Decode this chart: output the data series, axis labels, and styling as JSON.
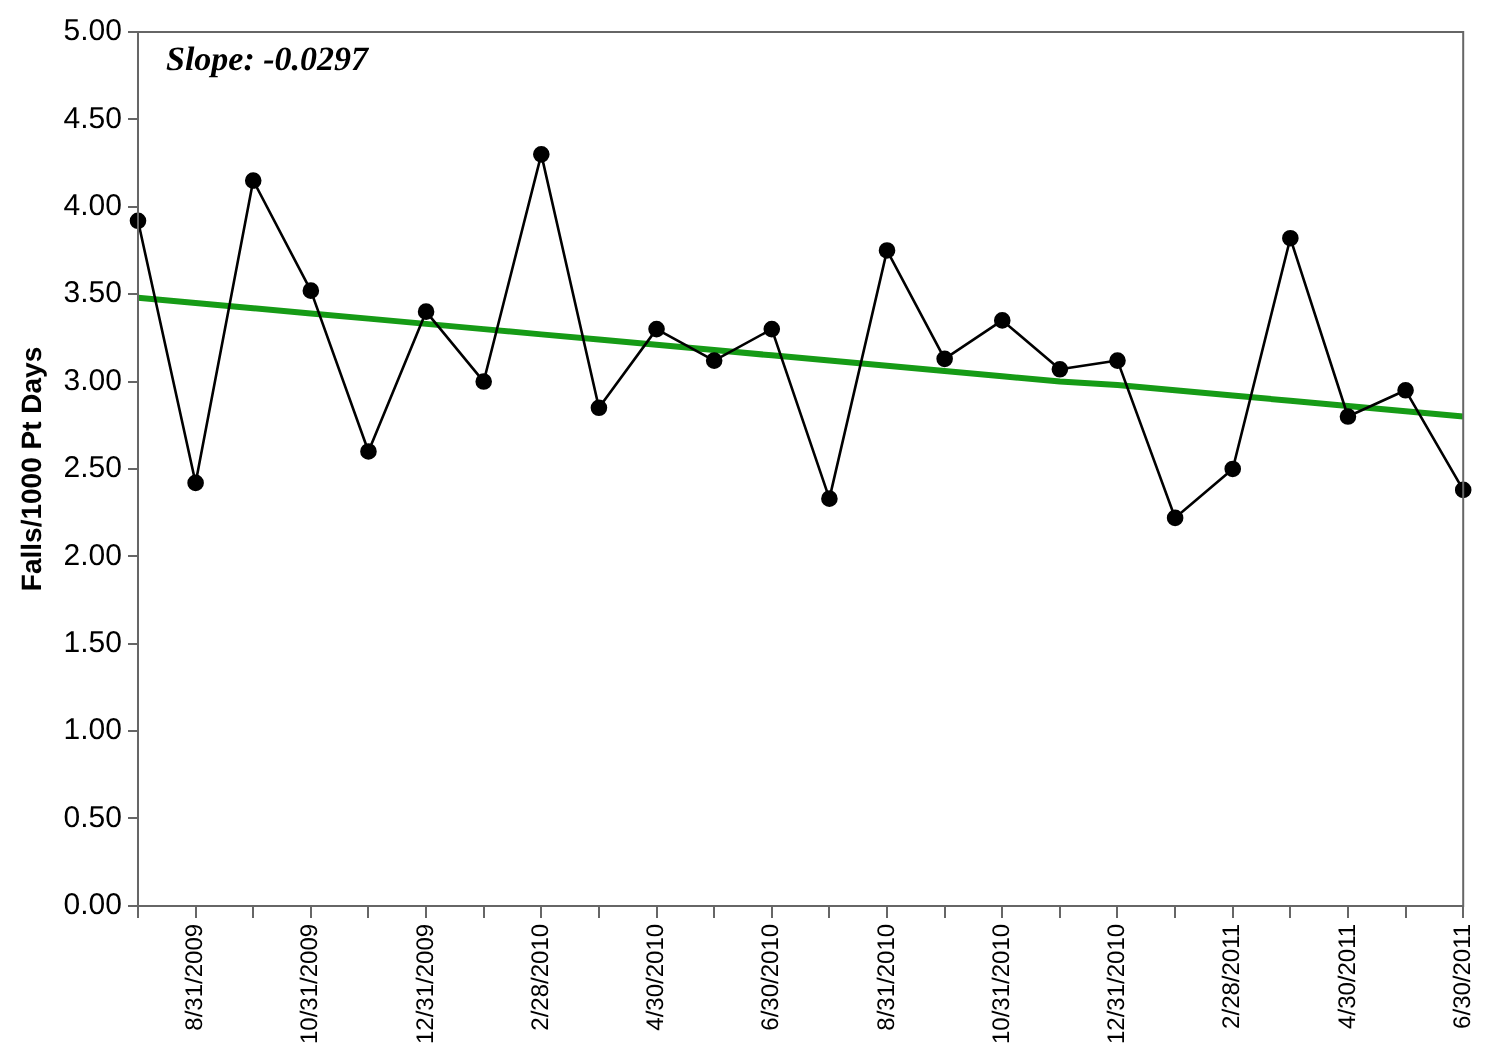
{
  "chart_data": {
    "type": "line",
    "ylabel": "Falls/1000 Pt Days",
    "categories": [
      null,
      "8/31/2009",
      null,
      "10/31/2009",
      null,
      "12/31/2009",
      null,
      "2/28/2010",
      null,
      "4/30/2010",
      null,
      "6/30/2010",
      null,
      "8/31/2010",
      null,
      "10/31/2010",
      null,
      "12/31/2010",
      null,
      "2/28/2011",
      null,
      "4/30/2011",
      null,
      "6/30/2011"
    ],
    "series": [
      {
        "color": "#000000",
        "marker": "circle",
        "values": [
          3.92,
          2.42,
          4.15,
          3.52,
          2.6,
          3.4,
          3.0,
          4.3,
          2.85,
          3.3,
          3.12,
          3.3,
          2.33,
          3.75,
          3.13,
          3.35,
          3.07,
          3.12,
          2.22,
          2.5,
          3.82,
          2.8,
          2.95,
          2.38
        ]
      },
      {
        "color": "#169b16",
        "marker": "none",
        "values": [
          3.48,
          3.45,
          3.42,
          3.39,
          3.36,
          3.33,
          3.3,
          3.27,
          3.24,
          3.21,
          3.18,
          3.15,
          3.12,
          3.09,
          3.06,
          3.03,
          3.0,
          2.98,
          2.95,
          2.92,
          2.89,
          2.86,
          2.83,
          2.8
        ]
      }
    ],
    "ylim": [
      0,
      5
    ],
    "yticks": [
      {
        "value": 0,
        "label": "0.00"
      },
      {
        "value": 0.5,
        "label": "0.50"
      },
      {
        "value": 1,
        "label": "1.00"
      },
      {
        "value": 1.5,
        "label": "1.50"
      },
      {
        "value": 2,
        "label": "2.00"
      },
      {
        "value": 2.5,
        "label": "2.50"
      },
      {
        "value": 3,
        "label": "3.00"
      },
      {
        "value": 3.5,
        "label": "3.50"
      },
      {
        "value": 4,
        "label": "4.00"
      },
      {
        "value": 4.5,
        "label": "4.50"
      },
      {
        "value": 5,
        "label": "5.00"
      }
    ],
    "annotations": [
      "Slope: -0.0297"
    ],
    "grid": false,
    "legend": false
  }
}
